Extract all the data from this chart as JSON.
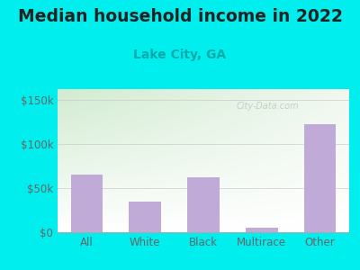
{
  "categories": [
    "All",
    "White",
    "Black",
    "Multirace",
    "Other"
  ],
  "values": [
    65000,
    35000,
    62000,
    5000,
    122000
  ],
  "bar_color": "#c0aad8",
  "title": "Median household income in 2022",
  "subtitle": "Lake City, GA",
  "title_fontsize": 13.5,
  "subtitle_fontsize": 10,
  "title_color": "#222222",
  "subtitle_color": "#00aaaa",
  "yticks": [
    0,
    50000,
    100000,
    150000
  ],
  "ytick_labels": [
    "$0",
    "$50k",
    "$100k",
    "$150k"
  ],
  "ylim": [
    0,
    162000
  ],
  "bg_color": "#00eeee",
  "plot_bg_top_left": "#d8eed8",
  "plot_bg_right": "#f5f5f8",
  "plot_bg_bottom": "#ffffff",
  "tick_label_color": "#666666",
  "bar_width": 0.55,
  "watermark": "City-Data.com"
}
